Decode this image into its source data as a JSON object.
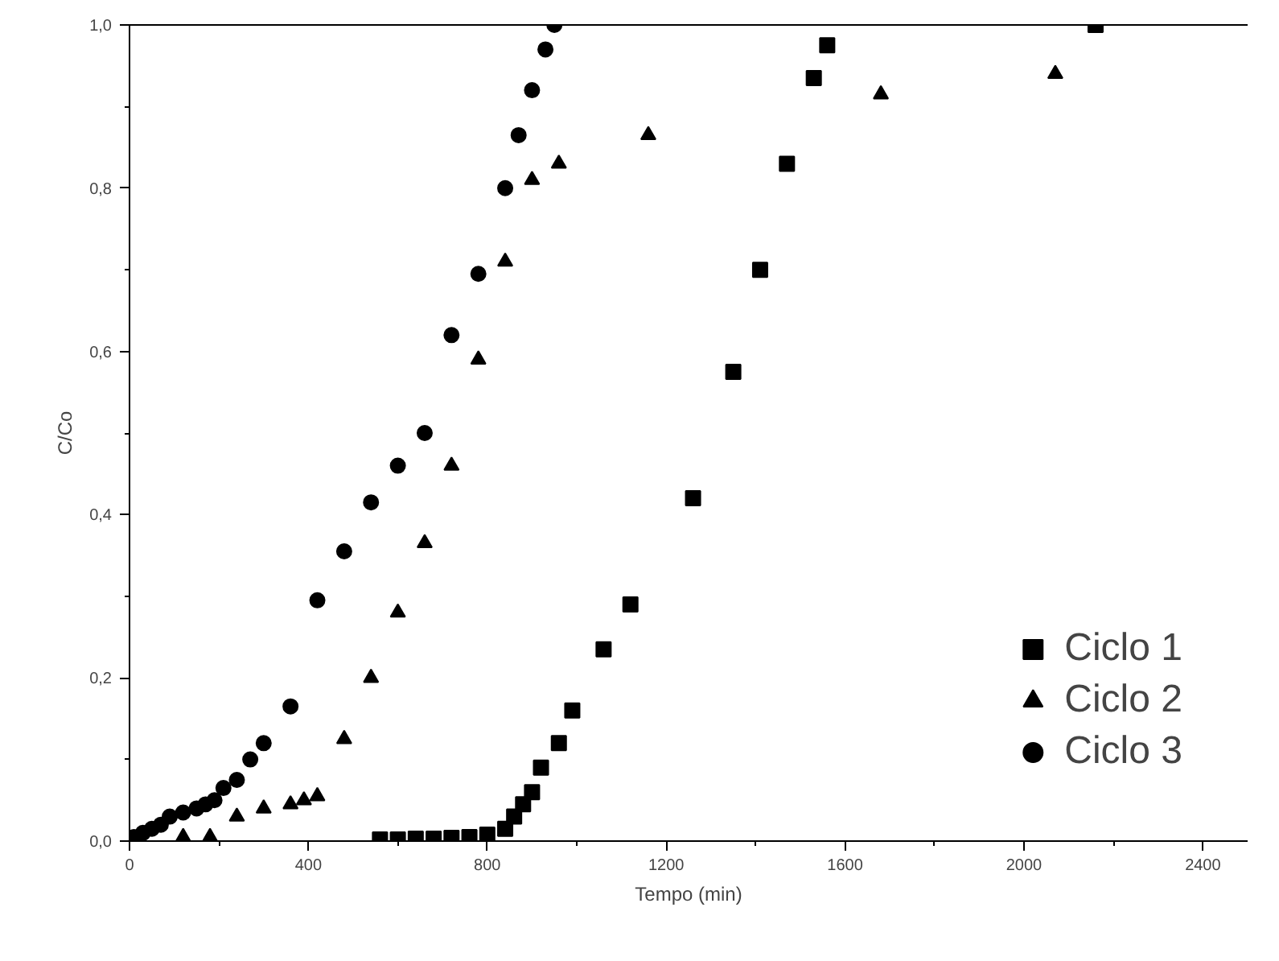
{
  "chart_data": {
    "type": "scatter",
    "xlabel": "Tempo (min)",
    "ylabel": "C/Co",
    "xlim": [
      0,
      2500
    ],
    "ylim": [
      0,
      1.0
    ],
    "xticks": [
      0,
      400,
      800,
      1200,
      1600,
      2000,
      2400
    ],
    "yticks": [
      {
        "value": 0,
        "label": "0,0"
      },
      {
        "value": 0.2,
        "label": "0,2"
      },
      {
        "value": 0.4,
        "label": "0,4"
      },
      {
        "value": 0.6,
        "label": "0,6"
      },
      {
        "value": 0.8,
        "label": "0,8"
      },
      {
        "value": 1.0,
        "label": "1,0"
      }
    ],
    "grid": false,
    "legend": "bottom right",
    "series": [
      {
        "name": "Ciclo 1",
        "color": "#000000",
        "marker": "square",
        "x": [
          560,
          600,
          640,
          680,
          720,
          760,
          800,
          840,
          860,
          880,
          900,
          920,
          960,
          990,
          1060,
          1120,
          1260,
          1350,
          1410,
          1470,
          1530,
          1560,
          2160
        ],
        "values": [
          0.002,
          0.002,
          0.003,
          0.003,
          0.004,
          0.005,
          0.008,
          0.015,
          0.03,
          0.045,
          0.06,
          0.09,
          0.12,
          0.16,
          0.235,
          0.29,
          0.42,
          0.575,
          0.7,
          0.83,
          0.935,
          0.975,
          1.0
        ]
      },
      {
        "name": "Ciclo 2",
        "color": "#000000",
        "marker": "triangle",
        "x": [
          120,
          180,
          240,
          300,
          360,
          390,
          420,
          480,
          540,
          600,
          660,
          720,
          780,
          840,
          900,
          960,
          1160,
          1680,
          2070
        ],
        "values": [
          0.005,
          0.005,
          0.03,
          0.04,
          0.045,
          0.05,
          0.055,
          0.125,
          0.2,
          0.28,
          0.365,
          0.46,
          0.59,
          0.71,
          0.81,
          0.83,
          0.865,
          0.915,
          0.94
        ]
      },
      {
        "name": "Ciclo 3",
        "color": "#000000",
        "marker": "circle",
        "x": [
          10,
          30,
          50,
          70,
          90,
          120,
          150,
          170,
          190,
          210,
          240,
          270,
          300,
          360,
          420,
          480,
          540,
          600,
          660,
          720,
          780,
          840,
          870,
          900,
          930,
          950
        ],
        "values": [
          0.005,
          0.01,
          0.015,
          0.02,
          0.03,
          0.035,
          0.04,
          0.045,
          0.05,
          0.065,
          0.075,
          0.1,
          0.12,
          0.165,
          0.295,
          0.355,
          0.415,
          0.46,
          0.5,
          0.62,
          0.695,
          0.8,
          0.865,
          0.92,
          0.97,
          1.0
        ]
      }
    ]
  }
}
